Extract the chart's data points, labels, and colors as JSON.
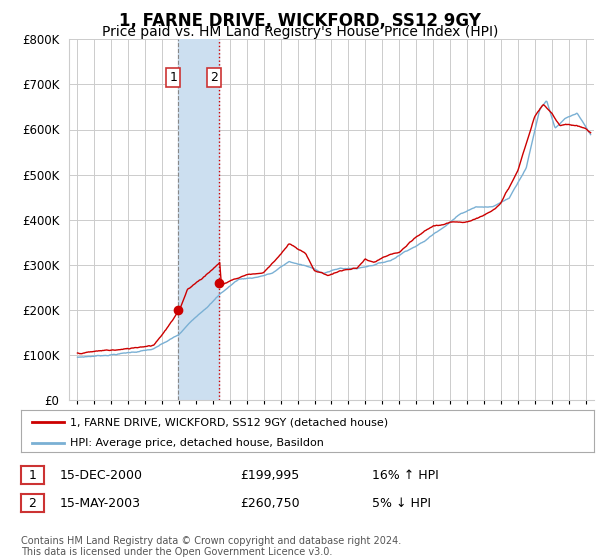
{
  "title": "1, FARNE DRIVE, WICKFORD, SS12 9GY",
  "subtitle": "Price paid vs. HM Land Registry's House Price Index (HPI)",
  "ylim": [
    0,
    800000
  ],
  "xlim_start": 1994.5,
  "xlim_end": 2025.5,
  "legend_line1": "1, FARNE DRIVE, WICKFORD, SS12 9GY (detached house)",
  "legend_line2": "HPI: Average price, detached house, Basildon",
  "table_rows": [
    {
      "num": "1",
      "date": "15-DEC-2000",
      "price": "£199,995",
      "hpi": "16% ↑ HPI"
    },
    {
      "num": "2",
      "date": "15-MAY-2003",
      "price": "£260,750",
      "hpi": "5% ↓ HPI"
    }
  ],
  "footer": "Contains HM Land Registry data © Crown copyright and database right 2024.\nThis data is licensed under the Open Government Licence v3.0.",
  "sale1_year": 2000.96,
  "sale1_price": 199995,
  "sale2_year": 2003.37,
  "sale2_price": 260750,
  "shade_start": 2000.96,
  "shade_end": 2003.37,
  "line_color_red": "#cc0000",
  "line_color_blue": "#7ab0d4",
  "shade_color": "#ccdff0",
  "background_color": "#ffffff",
  "grid_color": "#cccccc",
  "title_fontsize": 12,
  "subtitle_fontsize": 10
}
